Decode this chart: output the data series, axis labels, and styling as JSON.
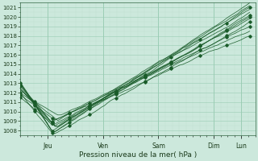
{
  "bg_color": "#cce8dc",
  "grid_color_major": "#99ccb3",
  "grid_color_minor": "#bbddcc",
  "line_color": "#1a5c2a",
  "ylim": [
    1007.5,
    1021.5
  ],
  "yticks": [
    1008,
    1009,
    1010,
    1011,
    1012,
    1013,
    1014,
    1015,
    1016,
    1017,
    1018,
    1019,
    1020,
    1021
  ],
  "xlabel": "Pression niveau de la mer( hPa )",
  "xlim": [
    0,
    8.5
  ],
  "xtick_positions": [
    1,
    3,
    5,
    7,
    8
  ],
  "xtick_labels": [
    "Jeu",
    "Ven",
    "Sam",
    "Dim",
    "Lun"
  ]
}
